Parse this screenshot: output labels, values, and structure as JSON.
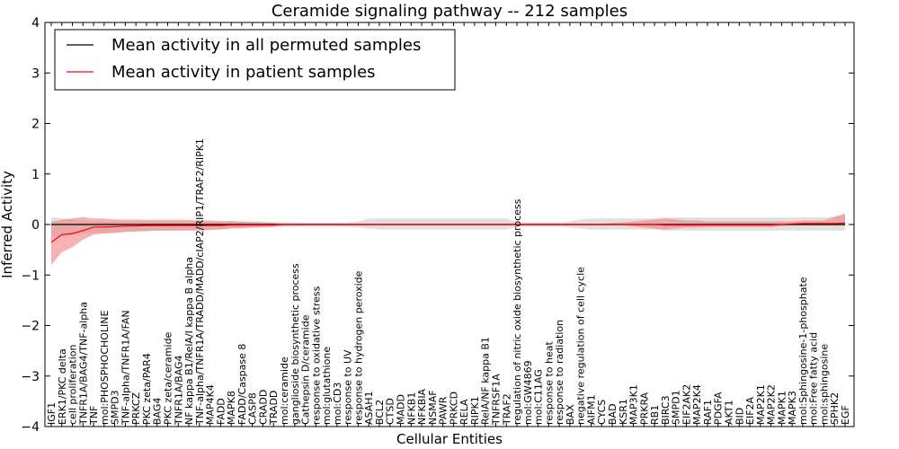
{
  "chart_data": {
    "type": "line",
    "title": "Ceramide signaling pathway -- 212 samples",
    "xlabel": "Cellular Entities",
    "ylabel": "Inferred Activity",
    "ylim": [
      -4,
      4
    ],
    "yticks": [
      -4,
      -3,
      -2,
      -1,
      0,
      1,
      2,
      3,
      4
    ],
    "ytick_labels": [
      "−4",
      "−3",
      "−2",
      "−1",
      "0",
      "1",
      "2",
      "3",
      "4"
    ],
    "grid": false,
    "legend_position": "top-left",
    "colors": {
      "permuted": "#000000",
      "patient": "#ff0000",
      "permuted_band": "#d3d3d3",
      "patient_band": "#f08080"
    },
    "categories": [
      "IGF1",
      "ERK1/PKC delta",
      "cell proliferation",
      "TNFR1A/BAG4/TNF-alpha",
      "TNF",
      "mol:PHOSPHOCHOLINE",
      "SMPD3",
      "TNF-alpha/TNFR1A/FAN",
      "PRKCZ",
      "PKC zeta/PAR4",
      "BAG4",
      "PKC zeta/ceramide",
      "TNFR1A/BAG4",
      "NF kappa B1/RelA/I kappa B alpha",
      "TNF-alpha/TNFR1A/TRADD/MADD/cIAP2/RIP1/TRAF2/RIPK1",
      "MAP4K4",
      "FADD",
      "MAPK8",
      "FADD/Caspase 8",
      "CASP8",
      "CRADD",
      "TRADD",
      "mol:ceramide",
      "ganglioside biosynthetic process",
      "Cathepsin D/ceramide",
      "response to oxidative stress",
      "mol:glutathione",
      "mol:CD3",
      "response to UV",
      "response to hydrogen peroxide",
      "ASAH1",
      "BCL2",
      "CTSD",
      "MADD",
      "NFKB1",
      "NFKBIA",
      "NSMAF",
      "PAWR",
      "PRKCD",
      "RELA",
      "RIPK1",
      "RelA/NF kappa B1",
      "TNFRSF1A",
      "TRAF2",
      "regulation of nitric oxide biosynthetic process",
      "mol:GW4869",
      "mol:C11AG",
      "response to heat",
      "response to radiation",
      "BAX",
      "negative regulation of cell cycle",
      "AIFM1",
      "CYCS",
      "BAD",
      "KSR1",
      "MAP3K1",
      "PRKRA",
      "RB1",
      "BIRC3",
      "SMPD1",
      "EIF2AK2",
      "MAP2K4",
      "RAF1",
      "PDGFA",
      "AKT1",
      "BID",
      "EIF2A",
      "MAP2K1",
      "MAP2K2",
      "MAPK1",
      "MAPK3",
      "mol:Sphingosine-1-phosphate",
      "mol:Free fatty acid",
      "mol:sphingosine",
      "SPHK2",
      "EGF"
    ],
    "series": [
      {
        "name": "Mean activity in all permuted samples",
        "values": [
          0,
          0,
          0,
          0,
          0,
          0,
          0,
          0,
          0,
          0,
          0,
          0,
          0,
          0,
          0,
          0,
          0,
          0,
          0,
          0,
          0,
          0,
          0,
          0,
          0,
          0,
          0,
          0,
          0,
          0,
          0,
          0,
          0,
          0,
          0,
          0,
          0,
          0,
          0,
          0,
          0,
          0,
          0,
          0,
          0,
          0,
          0,
          0,
          0,
          0,
          0,
          0,
          0,
          0,
          0,
          0,
          0,
          0,
          0,
          0,
          0,
          0,
          0,
          0,
          0,
          0,
          0,
          0,
          0,
          0,
          0,
          0,
          0,
          0,
          0,
          0
        ],
        "band_lower": [
          -0.25,
          -0.22,
          -0.2,
          -0.18,
          -0.17,
          -0.16,
          -0.15,
          -0.14,
          -0.14,
          -0.13,
          -0.13,
          -0.12,
          -0.12,
          -0.11,
          -0.1,
          -0.1,
          -0.09,
          -0.08,
          -0.08,
          -0.07,
          -0.07,
          -0.06,
          -0.05,
          -0.05,
          -0.04,
          -0.04,
          -0.04,
          -0.04,
          -0.05,
          -0.06,
          -0.08,
          -0.1,
          -0.1,
          -0.1,
          -0.1,
          -0.1,
          -0.1,
          -0.1,
          -0.1,
          -0.1,
          -0.1,
          -0.1,
          -0.1,
          -0.1,
          -0.05,
          -0.04,
          -0.04,
          -0.04,
          -0.04,
          -0.06,
          -0.08,
          -0.1,
          -0.1,
          -0.1,
          -0.1,
          -0.1,
          -0.1,
          -0.1,
          -0.12,
          -0.12,
          -0.12,
          -0.12,
          -0.12,
          -0.12,
          -0.12,
          -0.12,
          -0.12,
          -0.12,
          -0.12,
          -0.12,
          -0.12,
          -0.12,
          -0.12,
          -0.12,
          -0.12,
          -0.12
        ],
        "band_upper": [
          0.15,
          0.12,
          0.1,
          0.08,
          0.07,
          0.06,
          0.06,
          0.06,
          0.06,
          0.06,
          0.06,
          0.06,
          0.06,
          0.06,
          0.06,
          0.06,
          0.06,
          0.06,
          0.06,
          0.06,
          0.06,
          0.05,
          0.05,
          0.04,
          0.03,
          0.03,
          0.03,
          0.03,
          0.04,
          0.06,
          0.12,
          0.12,
          0.12,
          0.12,
          0.12,
          0.12,
          0.12,
          0.12,
          0.12,
          0.12,
          0.12,
          0.12,
          0.12,
          0.12,
          0.05,
          0.04,
          0.04,
          0.04,
          0.04,
          0.06,
          0.1,
          0.12,
          0.12,
          0.12,
          0.12,
          0.12,
          0.12,
          0.12,
          0.14,
          0.14,
          0.14,
          0.14,
          0.14,
          0.14,
          0.14,
          0.14,
          0.14,
          0.14,
          0.14,
          0.14,
          0.14,
          0.14,
          0.14,
          0.14,
          0.16,
          0.18
        ]
      },
      {
        "name": "Mean activity in patient samples",
        "values": [
          -0.35,
          -0.2,
          -0.18,
          -0.12,
          -0.05,
          -0.05,
          -0.04,
          -0.03,
          -0.03,
          -0.02,
          -0.02,
          -0.02,
          -0.02,
          -0.02,
          -0.02,
          -0.02,
          -0.02,
          -0.01,
          -0.01,
          -0.01,
          -0.01,
          -0.01,
          0,
          0,
          0,
          0,
          0,
          0,
          0,
          0,
          0,
          0,
          0,
          0,
          0,
          0,
          0,
          0,
          0,
          0,
          0,
          0,
          0,
          0,
          0,
          0,
          0,
          0,
          0,
          0,
          0,
          0,
          0,
          0,
          0,
          0,
          0,
          0,
          -0.01,
          -0.01,
          -0.01,
          -0.01,
          -0.01,
          -0.01,
          -0.01,
          -0.01,
          -0.01,
          -0.01,
          -0.01,
          0,
          0.01,
          0.02,
          0.02,
          0.02,
          0.02,
          0.03
        ],
        "band_lower": [
          -0.8,
          -0.55,
          -0.45,
          -0.3,
          -0.2,
          -0.18,
          -0.17,
          -0.15,
          -0.14,
          -0.13,
          -0.12,
          -0.12,
          -0.12,
          -0.12,
          -0.12,
          -0.11,
          -0.1,
          -0.08,
          -0.07,
          -0.06,
          -0.05,
          -0.04,
          -0.02,
          -0.02,
          -0.02,
          -0.02,
          -0.02,
          -0.02,
          -0.02,
          -0.02,
          -0.02,
          -0.02,
          -0.02,
          -0.02,
          -0.02,
          -0.02,
          -0.02,
          -0.02,
          -0.02,
          -0.02,
          -0.02,
          -0.02,
          -0.02,
          -0.02,
          -0.02,
          -0.02,
          -0.02,
          -0.02,
          -0.02,
          -0.02,
          -0.02,
          -0.02,
          -0.02,
          -0.02,
          -0.02,
          -0.04,
          -0.06,
          -0.08,
          -0.1,
          -0.08,
          -0.06,
          -0.06,
          -0.05,
          -0.05,
          -0.05,
          -0.05,
          -0.05,
          -0.05,
          -0.05,
          -0.03,
          -0.02,
          -0.02,
          -0.02,
          -0.02,
          -0.02,
          -0.02
        ],
        "band_upper": [
          0.05,
          0.1,
          0.12,
          0.15,
          0.12,
          0.12,
          0.1,
          0.1,
          0.1,
          0.09,
          0.09,
          0.09,
          0.09,
          0.09,
          0.08,
          0.08,
          0.07,
          0.07,
          0.06,
          0.05,
          0.04,
          0.03,
          0.02,
          0.02,
          0.02,
          0.02,
          0.02,
          0.02,
          0.02,
          0.02,
          0.02,
          0.02,
          0.02,
          0.02,
          0.02,
          0.02,
          0.02,
          0.02,
          0.02,
          0.02,
          0.02,
          0.02,
          0.02,
          0.02,
          0.02,
          0.02,
          0.02,
          0.02,
          0.02,
          0.02,
          0.02,
          0.02,
          0.02,
          0.03,
          0.04,
          0.06,
          0.08,
          0.1,
          0.12,
          0.1,
          0.08,
          0.08,
          0.06,
          0.06,
          0.06,
          0.06,
          0.06,
          0.06,
          0.06,
          0.06,
          0.06,
          0.08,
          0.08,
          0.08,
          0.15,
          0.22
        ]
      }
    ]
  }
}
